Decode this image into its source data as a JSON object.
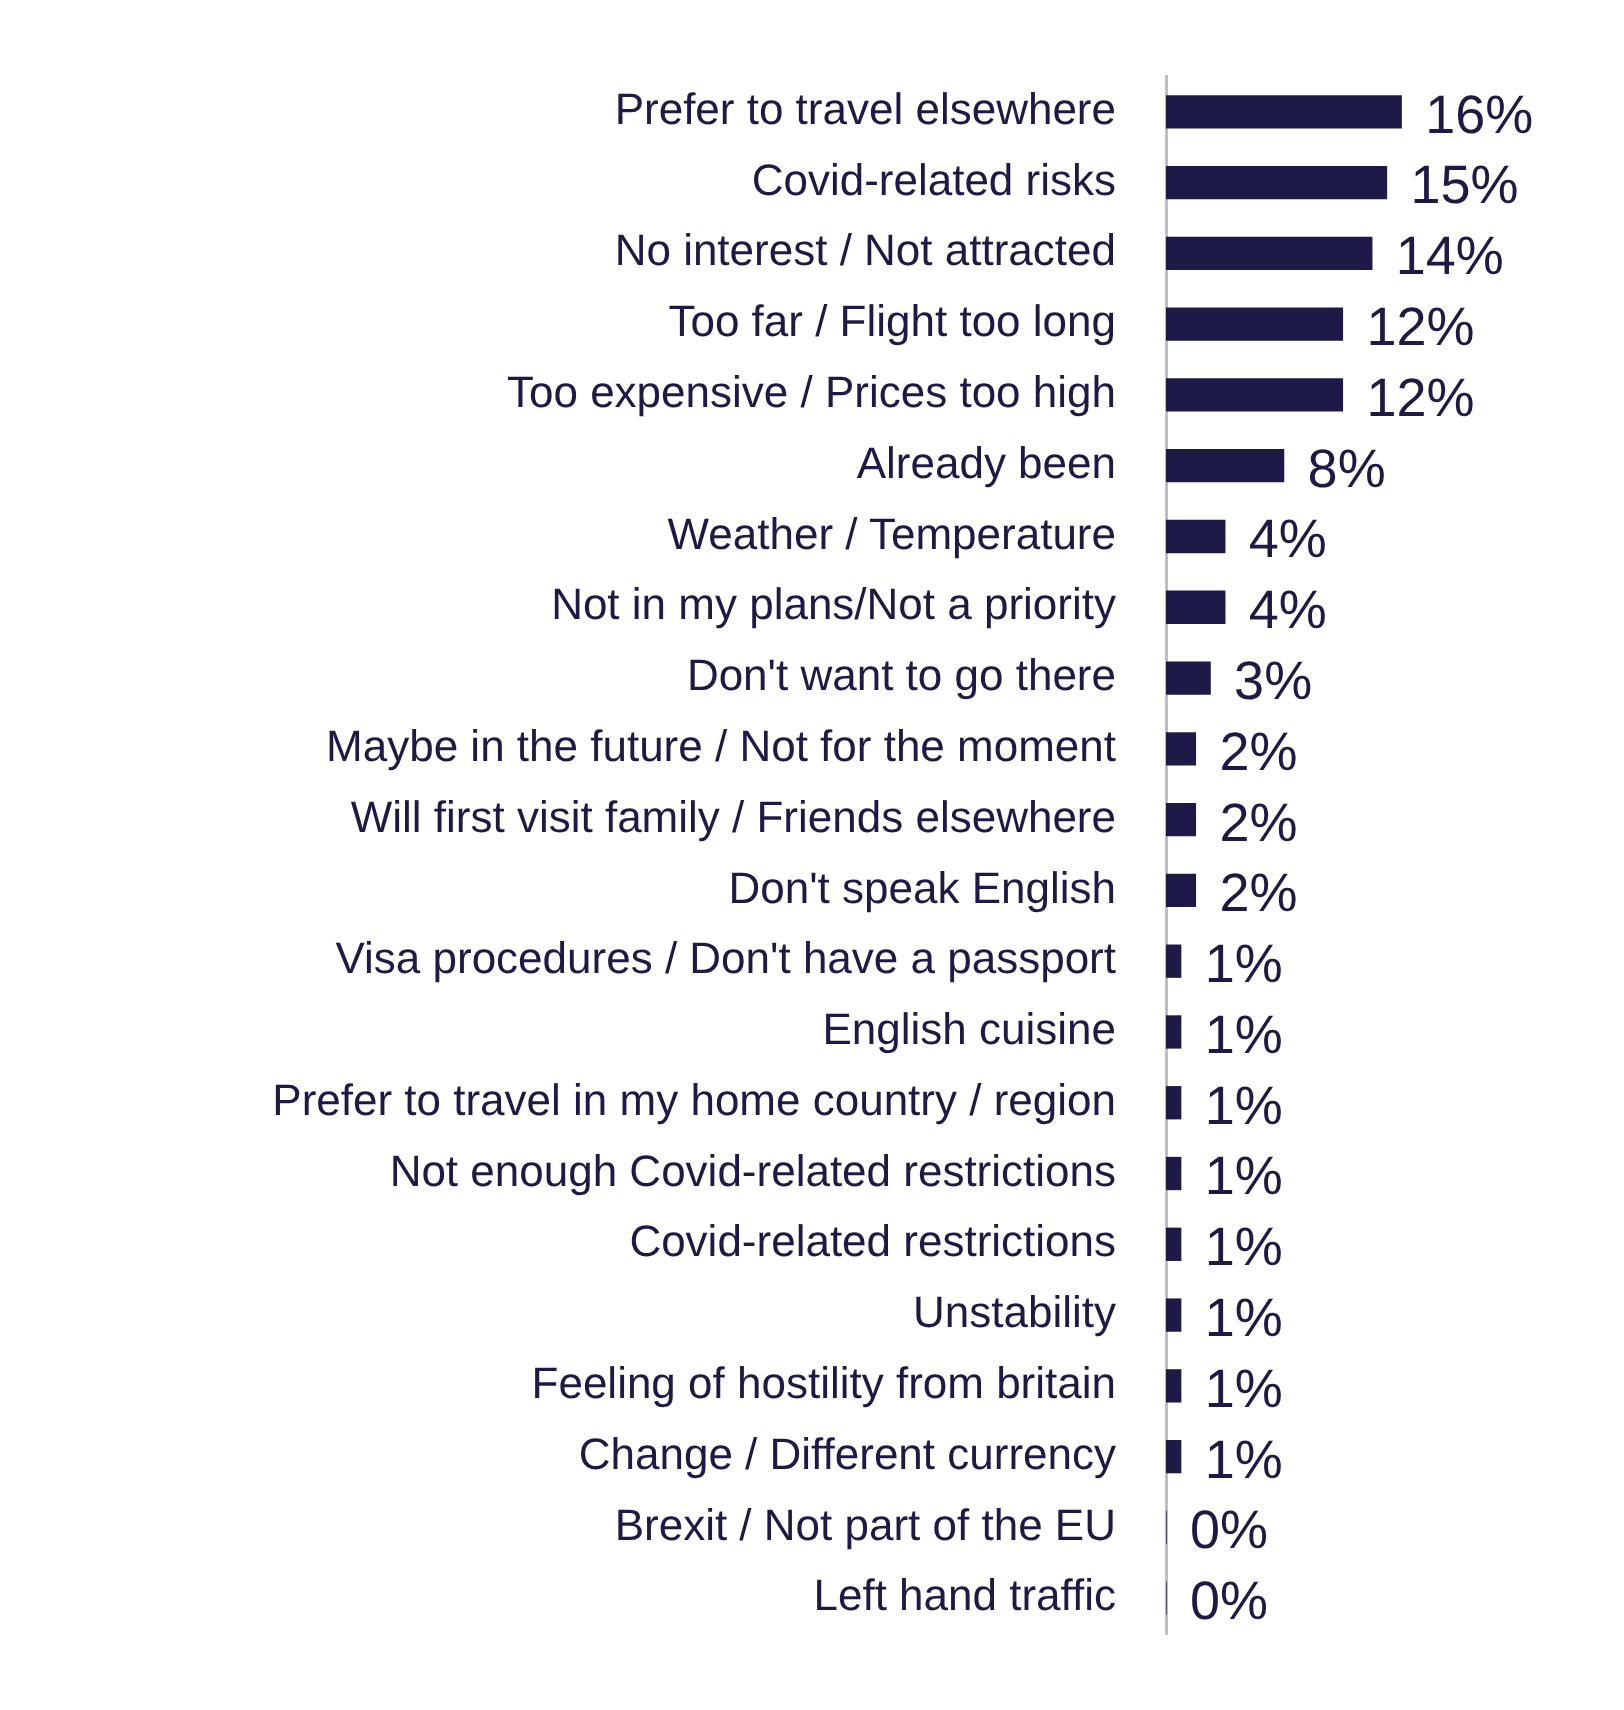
{
  "chart_data": {
    "type": "bar",
    "orientation": "horizontal",
    "categories": [
      "Prefer to travel elsewhere",
      "Covid-related risks",
      "No interest / Not attracted",
      "Too far / Flight too long",
      "Too expensive / Prices too high",
      "Already been",
      "Weather / Temperature",
      "Not in my plans/Not a priority",
      "Don't want to go there",
      "Maybe in the future / Not for the moment",
      "Will first visit family / Friends elsewhere",
      "Don't speak English",
      "Visa procedures / Don't have a passport",
      "English cuisine",
      "Prefer to travel in my home country / region",
      "Not enough Covid-related restrictions",
      "Covid-related restrictions",
      "Unstability",
      "Feeling of hostility from britain",
      "Change / Different currency",
      "Brexit / Not part of the EU",
      "Left hand traffic"
    ],
    "values": [
      16,
      15,
      14,
      12,
      12,
      8,
      4,
      4,
      3,
      2,
      2,
      2,
      1,
      1,
      1,
      1,
      1,
      1,
      1,
      1,
      0,
      0
    ],
    "value_labels": [
      "16%",
      "15%",
      "14%",
      "12%",
      "12%",
      "8%",
      "4%",
      "4%",
      "3%",
      "2%",
      "2%",
      "2%",
      "1%",
      "1%",
      "1%",
      "1%",
      "1%",
      "1%",
      "1%",
      "1%",
      "0%",
      "0%"
    ],
    "color": "#1e1a47",
    "legend": false
  }
}
